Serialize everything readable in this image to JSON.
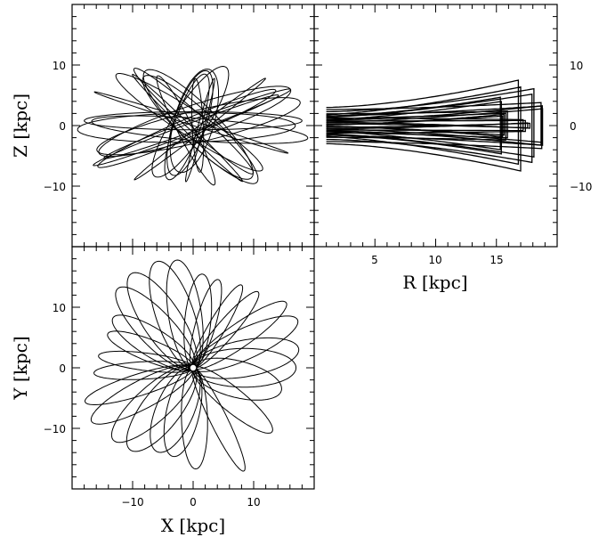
{
  "chart_data": [
    {
      "panel": "top-left",
      "type": "line",
      "title": "",
      "xlabel": "",
      "ylabel": "Z [kpc]",
      "xlim": [
        -20,
        20
      ],
      "ylim": [
        -20,
        20
      ],
      "yticks": [
        -10,
        0,
        10
      ],
      "yticklabels": [
        "−10",
        "0",
        "10"
      ],
      "ylabel_side": "left",
      "yticklabels_side": "left",
      "description_of_data": "meridional projection X–Z of a rosette stellar orbit; many elongated loops crossing near the origin",
      "series": [
        {
          "family": "loop",
          "angle_deg": 0,
          "semi_major": 19,
          "semi_minor": 6,
          "center": [
            0,
            0
          ]
        }
      ]
    },
    {
      "panel": "top-right",
      "type": "line",
      "title": "",
      "xlabel": "R [kpc]",
      "ylabel": "",
      "xlim": [
        0,
        20
      ],
      "ylim": [
        -20,
        20
      ],
      "xticks": [
        5,
        10,
        15
      ],
      "xticklabels": [
        "5",
        "10",
        "15"
      ],
      "yticks": [
        -10,
        0,
        10
      ],
      "yticklabels": [
        "−10",
        "0",
        "10"
      ],
      "yticklabels_side": "right",
      "description_of_data": "R–Z projection: bow-tie shaped band of orbit crossings between R≈1 and R≈19 kpc, |Z| up to about 12 kpc"
    },
    {
      "panel": "bottom-left",
      "type": "line",
      "title": "",
      "xlabel": "X [kpc]",
      "ylabel": "Y [kpc]",
      "xlim": [
        -20,
        20
      ],
      "ylim": [
        -20,
        20
      ],
      "xticks": [
        -10,
        0,
        10
      ],
      "xticklabels": [
        "−10",
        "0",
        "10"
      ],
      "yticks": [
        -10,
        0,
        10
      ],
      "yticklabels": [
        "−10",
        "0",
        "10"
      ],
      "description_of_data": "X–Y plane projection: rosette of elongated petals with pericenter ≈1.5 kpc and apocenter ≈19 kpc"
    }
  ]
}
